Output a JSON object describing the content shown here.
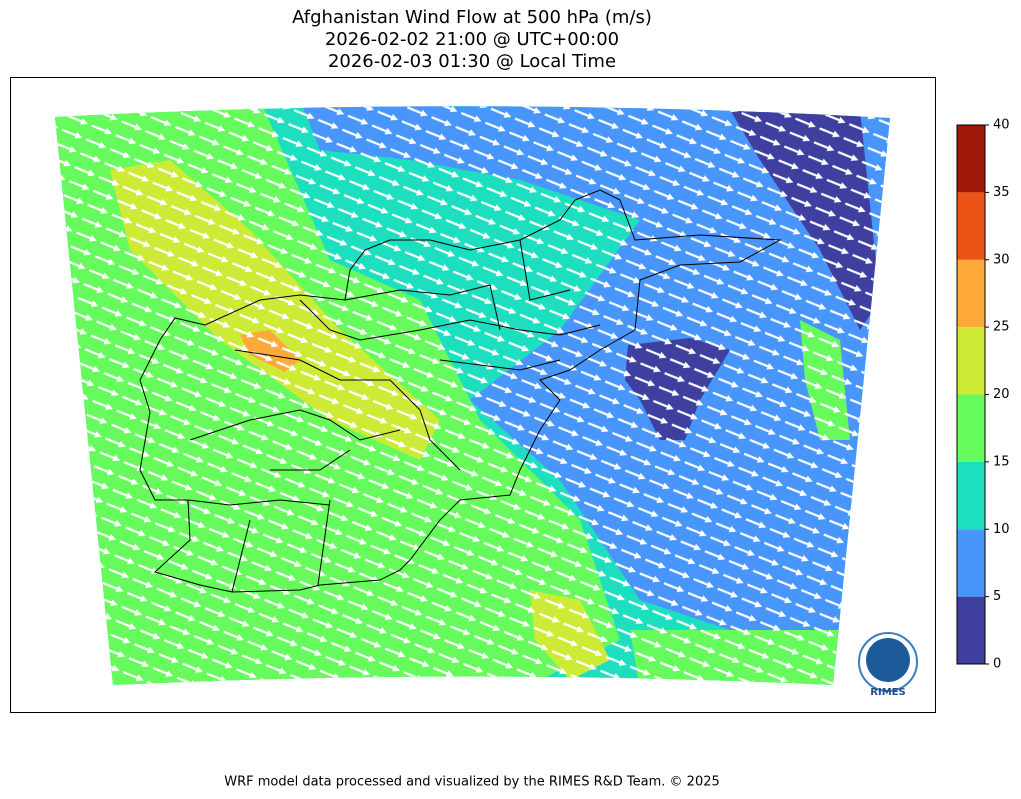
{
  "title": {
    "lines": [
      "Afghanistan Wind Flow at 500 hPa (m/s)",
      "2026-02-02 21:00 @ UTC+00:00",
      "2026-02-03 01:30 @ Local Time"
    ]
  },
  "colorbar": {
    "ticks": [
      0,
      5,
      10,
      15,
      20,
      25,
      30,
      35,
      40
    ],
    "colors": [
      "#3e3f9f",
      "#4896fb",
      "#1ddfc0",
      "#66fa5c",
      "#cdea37",
      "#fdaa3b",
      "#ec5316",
      "#a0190a"
    ]
  },
  "logo": "RIMES",
  "footer": "WRF model data processed and visualized by the RIMES R&D Team. © 2025"
}
